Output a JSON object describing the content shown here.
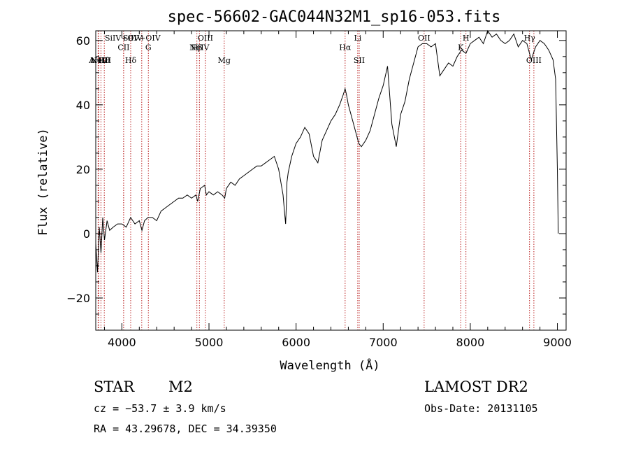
{
  "chart_data": {
    "type": "line",
    "title": "spec-56602-GAC044N32M1_sp16-053.fits",
    "xlabel": "Wavelength (Å)",
    "ylabel": "Flux (relative)",
    "xlim": [
      3700,
      9100
    ],
    "ylim": [
      -30,
      63
    ],
    "xticks": [
      4000,
      5000,
      6000,
      7000,
      8000,
      9000
    ],
    "yticks": [
      -20,
      0,
      20,
      40,
      60
    ],
    "xtick_labels": [
      "4000",
      "5000",
      "6000",
      "7000",
      "8000",
      "9000"
    ],
    "ytick_labels": [
      "−20",
      "0",
      "20",
      "40",
      "60"
    ],
    "series": [
      {
        "x": [
          3700,
          3720,
          3740,
          3760,
          3780,
          3800,
          3830,
          3860,
          3900,
          3950,
          4000,
          4050,
          4100,
          4150,
          4200,
          4230,
          4260,
          4300,
          4350,
          4400,
          4450,
          4500,
          4550,
          4600,
          4650,
          4700,
          4750,
          4800,
          4850,
          4870,
          4900,
          4950,
          4970,
          5000,
          5050,
          5100,
          5150,
          5180,
          5200,
          5250,
          5300,
          5350,
          5400,
          5450,
          5500,
          5550,
          5600,
          5650,
          5700,
          5750,
          5800,
          5850,
          5870,
          5880,
          5890,
          5895,
          5910,
          5950,
          6000,
          6050,
          6100,
          6150,
          6200,
          6250,
          6300,
          6350,
          6400,
          6450,
          6500,
          6540,
          6563,
          6580,
          6600,
          6650,
          6700,
          6720,
          6750,
          6800,
          6850,
          6900,
          6950,
          7000,
          7050,
          7100,
          7150,
          7200,
          7250,
          7300,
          7350,
          7400,
          7450,
          7500,
          7550,
          7600,
          7650,
          7700,
          7750,
          7800,
          7850,
          7900,
          7950,
          8000,
          8050,
          8100,
          8150,
          8200,
          8250,
          8300,
          8350,
          8400,
          8450,
          8500,
          8550,
          8600,
          8650,
          8700,
          8750,
          8800,
          8850,
          8900,
          8950,
          8980,
          9000,
          9010
        ],
        "y": [
          -3,
          -12,
          2,
          -6,
          5,
          -2,
          4,
          1,
          2,
          3,
          3,
          2,
          5,
          3,
          4,
          1,
          4,
          5,
          5,
          4,
          7,
          8,
          9,
          10,
          11,
          11,
          12,
          11,
          12,
          10,
          14,
          15,
          12,
          13,
          12,
          13,
          12,
          11,
          14,
          16,
          15,
          17,
          18,
          19,
          20,
          21,
          21,
          22,
          23,
          24,
          20,
          12,
          6,
          3,
          10,
          16,
          19,
          24,
          28,
          30,
          33,
          31,
          24,
          22,
          29,
          32,
          35,
          37,
          40,
          43,
          45,
          43,
          40,
          35,
          30,
          28,
          27,
          29,
          32,
          37,
          42,
          46,
          52,
          34,
          27,
          37,
          41,
          48,
          53,
          58,
          59,
          59,
          58,
          59,
          49,
          51,
          53,
          52,
          55,
          57,
          56,
          59,
          60,
          61,
          59,
          63,
          61,
          62,
          60,
          59,
          60,
          62,
          58,
          60,
          59,
          54,
          58,
          60,
          59,
          57,
          54,
          48,
          20,
          0
        ]
      }
    ],
    "lines": [
      {
        "x": 3727,
        "label": "ArIII",
        "y": 53
      },
      {
        "x": 3734,
        "label": "NeV",
        "y": 53
      },
      {
        "x": 3760,
        "label": "NeIII",
        "y": 53
      },
      {
        "x": 3798,
        "label": "Hθ",
        "y": 53
      },
      {
        "x": 4020,
        "label": "SiIV+OIV",
        "y": 60
      },
      {
        "x": 4020,
        "label": "CII",
        "y": 57
      },
      {
        "x": 4101,
        "label": "Hδ",
        "y": 53
      },
      {
        "x": 4228,
        "label": "SiIV+OIV",
        "y": 60
      },
      {
        "x": 4304,
        "label": "G",
        "y": 57
      },
      {
        "x": 4861,
        "label": "Hβ",
        "y": 57
      },
      {
        "x": 4890,
        "label": "NeIV",
        "y": 57
      },
      {
        "x": 4959,
        "label": "OIII",
        "y": 60
      },
      {
        "x": 5175,
        "label": "Mg",
        "y": 53
      },
      {
        "x": 6563,
        "label": "Hα",
        "y": 57
      },
      {
        "x": 6708,
        "label": "Li",
        "y": 60
      },
      {
        "x": 6725,
        "label": "SII",
        "y": 53
      },
      {
        "x": 7470,
        "label": "OII",
        "y": 60
      },
      {
        "x": 7890,
        "label": "K",
        "y": 57
      },
      {
        "x": 7950,
        "label": "H",
        "y": 60
      },
      {
        "x": 8680,
        "label": "Hγ",
        "y": 60
      },
      {
        "x": 8730,
        "label": "OIII",
        "y": 53
      }
    ]
  },
  "info": {
    "obj_class": "STAR",
    "subclass": "M2",
    "survey": "LAMOST DR2",
    "cz": "cz = −53.7 ± 3.9 km/s",
    "obs_date": "Obs-Date: 20131105",
    "coords": "RA =  43.29678, DEC =  34.39350"
  }
}
